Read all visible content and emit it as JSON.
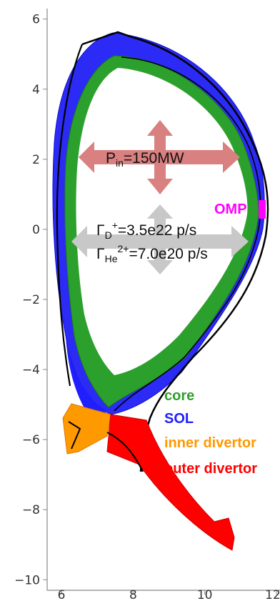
{
  "chart_data": {
    "type": "diagram",
    "title": "",
    "xlabel": "",
    "ylabel": "",
    "xlim": [
      5.6,
      12.1
    ],
    "ylim": [
      -10.3,
      6.3
    ],
    "xticks": [
      6,
      8,
      10,
      12
    ],
    "yticks": [
      6,
      4,
      2,
      0,
      -2,
      -4,
      -6,
      -8,
      -10
    ],
    "xtick_labels": [
      "6",
      "8",
      "10",
      "12"
    ],
    "ytick_labels": [
      "6",
      "4",
      "2",
      "0",
      "−2",
      "−4",
      "−6",
      "−8",
      "−10"
    ],
    "regions": [
      {
        "key": "core",
        "label": "core",
        "color": "#2ca02c"
      },
      {
        "key": "sol",
        "label": "SOL",
        "color": "#1f1fff"
      },
      {
        "key": "inner",
        "label": "inner divertor",
        "color": "#ff9900"
      },
      {
        "key": "outer",
        "label": "outer divertor",
        "color": "#ff0000"
      }
    ],
    "omp": {
      "label": "OMP",
      "color": "#ff00ff"
    },
    "power": {
      "symbol": "P",
      "subscript": "in",
      "value": "=150MW"
    },
    "flux_d": {
      "symbol": "Γ",
      "subscript": "D",
      "superscript": "+",
      "value": "=3.5e22 p/s"
    },
    "flux_he": {
      "symbol": "Γ",
      "subscript": "He",
      "superscript": "2+",
      "value": "=7.0e20 p/s"
    },
    "colors": {
      "wall": "#000000",
      "arrow_red": "#d98080",
      "arrow_gray": "#c8c8c8",
      "axis": "#888888"
    }
  }
}
